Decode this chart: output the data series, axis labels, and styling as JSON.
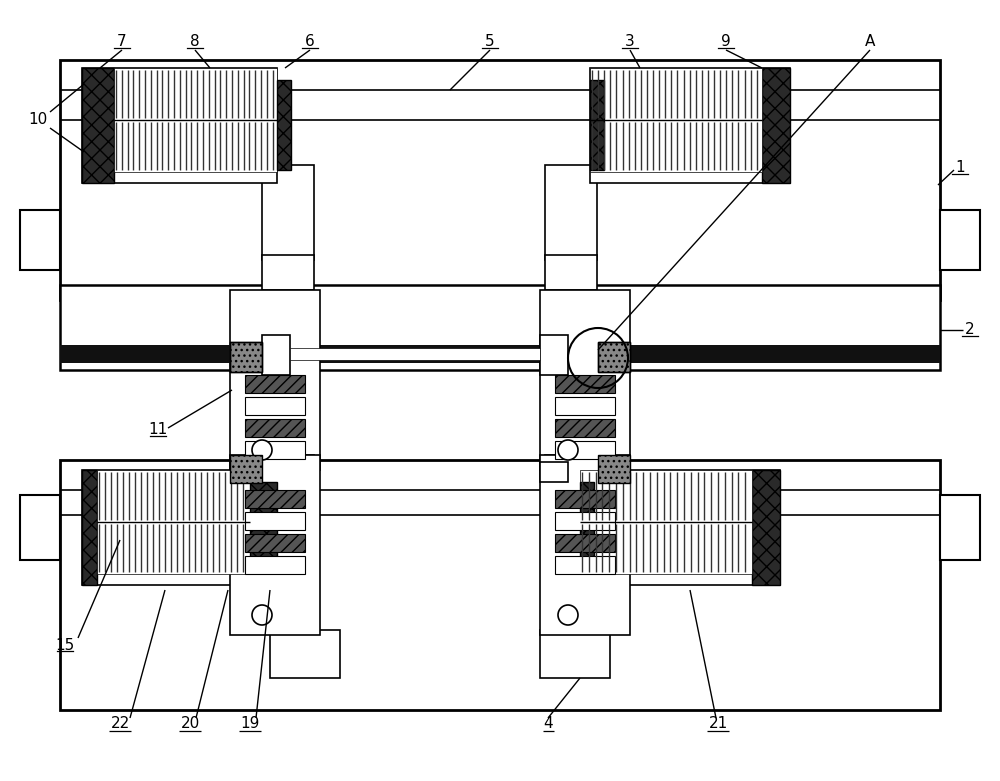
{
  "bg_color": "#ffffff",
  "fig_width": 10.0,
  "fig_height": 7.81
}
